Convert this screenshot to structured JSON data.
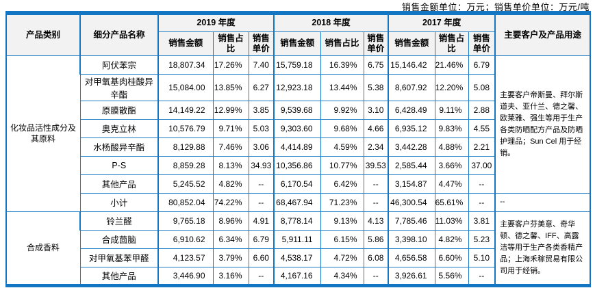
{
  "caption": "销售金额单位：万元；销售单价单位：万元/吨",
  "table": {
    "headers": {
      "category": "产品类别",
      "product": "细分产品名称",
      "usage": "主要客户及产品用途",
      "years": [
        "2019 年度",
        "2018 年度",
        "2017 年度"
      ],
      "sub": [
        "销售金额",
        "销售占比",
        "销售单价"
      ]
    },
    "sections": [
      {
        "category": "化妆品活性成分及其原料",
        "usage": "主要客户帝斯曼、拜尔斯道夫、亚什兰、德之馨、欧莱雅、强生等用于生产各类防晒配方产品及防晒护理品；Sun Cel 用于经销。",
        "usage_rowspan": 7,
        "rows": [
          {
            "name": "阿伏苯宗",
            "y2019": [
              "18,807.34",
              "17.26%",
              "7.40"
            ],
            "y2018": [
              "15,759.18",
              "16.39%",
              "6.75"
            ],
            "y2017": [
              "15,146.42",
              "21.46%",
              "6.79"
            ]
          },
          {
            "name": "对甲氧基肉桂酸异辛酯",
            "y2019": [
              "15,084.00",
              "13.85%",
              "6.27"
            ],
            "y2018": [
              "12,923.18",
              "13.44%",
              "5.38"
            ],
            "y2017": [
              "8,607.92",
              "12.20%",
              "5.08"
            ]
          },
          {
            "name": "原膜散酯",
            "y2019": [
              "14,149.22",
              "12.99%",
              "3.85"
            ],
            "y2018": [
              "9,539.68",
              "9.92%",
              "3.10"
            ],
            "y2017": [
              "6,428.49",
              "9.11%",
              "2.88"
            ]
          },
          {
            "name": "奥克立林",
            "y2019": [
              "10,576.79",
              "9.71%",
              "5.03"
            ],
            "y2018": [
              "9,303.60",
              "9.68%",
              "4.66"
            ],
            "y2017": [
              "6,935.12",
              "9.83%",
              "4.55"
            ]
          },
          {
            "name": "水杨酸异辛酯",
            "y2019": [
              "8,129.88",
              "7.46%",
              "3.06"
            ],
            "y2018": [
              "4,414.89",
              "4.59%",
              "2.34"
            ],
            "y2017": [
              "3,442.28",
              "4.88%",
              "2.21"
            ]
          },
          {
            "name": "P-S",
            "y2019": [
              "8,859.28",
              "8.13%",
              "34.93"
            ],
            "y2018": [
              "10,356.86",
              "10.77%",
              "39.53"
            ],
            "y2017": [
              "2,585.44",
              "3.66%",
              "37.00"
            ]
          },
          {
            "name": "其他产品",
            "y2019": [
              "5,245.52",
              "4.82%",
              "--"
            ],
            "y2018": [
              "6,170.54",
              "6.42%",
              "--"
            ],
            "y2017": [
              "3,154.87",
              "4.47%",
              "--"
            ]
          },
          {
            "name": "小计",
            "y2019": [
              "80,852.04",
              "74.22%",
              "--"
            ],
            "y2018": [
              "68,467.94",
              "71.23%",
              "--"
            ],
            "y2017": [
              "46,300.54",
              "65.61%",
              "--"
            ],
            "usage": "--"
          }
        ]
      },
      {
        "category": "合成香料",
        "usage": "主要客户芬美意、奇华顿、德之馨、IFF、高露洁等用于生产各类香精产品；上海禾稼贸易有限公司用于经销。",
        "usage_rowspan": 4,
        "rows": [
          {
            "name": "铃兰醛",
            "y2019": [
              "9,765.18",
              "8.96%",
              "4.91"
            ],
            "y2018": [
              "8,778.14",
              "9.13%",
              "4.13"
            ],
            "y2017": [
              "7,785.46",
              "11.03%",
              "3.81"
            ]
          },
          {
            "name": "合成茴脑",
            "y2019": [
              "6,910.62",
              "6.34%",
              "6.79"
            ],
            "y2018": [
              "5,911.11",
              "6.15%",
              "5.86"
            ],
            "y2017": [
              "3,398.10",
              "4.82%",
              "5.23"
            ]
          },
          {
            "name": "对甲氧基苯甲醛",
            "y2019": [
              "4,123.57",
              "3.79%",
              "6.60"
            ],
            "y2018": [
              "4,538.17",
              "4.72%",
              "6.08"
            ],
            "y2017": [
              "4,656.58",
              "6.60%",
              "5.10"
            ]
          },
          {
            "name": "其他产品",
            "y2019": [
              "3,446.90",
              "3.16%",
              "--"
            ],
            "y2018": [
              "4,167.16",
              "4.34%",
              "--"
            ],
            "y2017": [
              "3,926.61",
              "5.56%",
              "--"
            ]
          }
        ]
      }
    ]
  }
}
